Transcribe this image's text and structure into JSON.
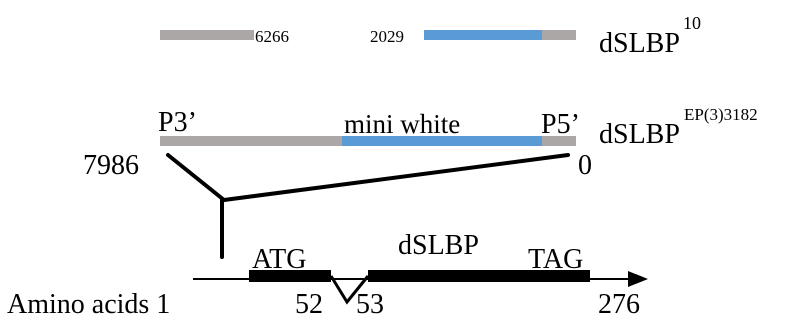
{
  "colors": {
    "gray_bar": "#aaa7a6",
    "blue_bar": "#5b9bd5",
    "line": "#000000",
    "text": "#000000"
  },
  "allele_1": {
    "left_number": "6266",
    "right_number": "2029",
    "name": "dSLBP",
    "superscript": "10"
  },
  "allele_2": {
    "left_end_label": "P3’",
    "insert_label": "mini white",
    "right_end_label": "P5’",
    "name": "dSLBP",
    "superscript": "EP(3)3182",
    "left_coordinate": "7986",
    "right_coordinate": "0"
  },
  "gene": {
    "start_codon": "ATG",
    "gene_name": "dSLBP",
    "stop_codon": "TAG",
    "amino_acids_label": "Amino acids 1",
    "exon1_end": "52",
    "exon2_start": "53",
    "last_residue": "276"
  }
}
